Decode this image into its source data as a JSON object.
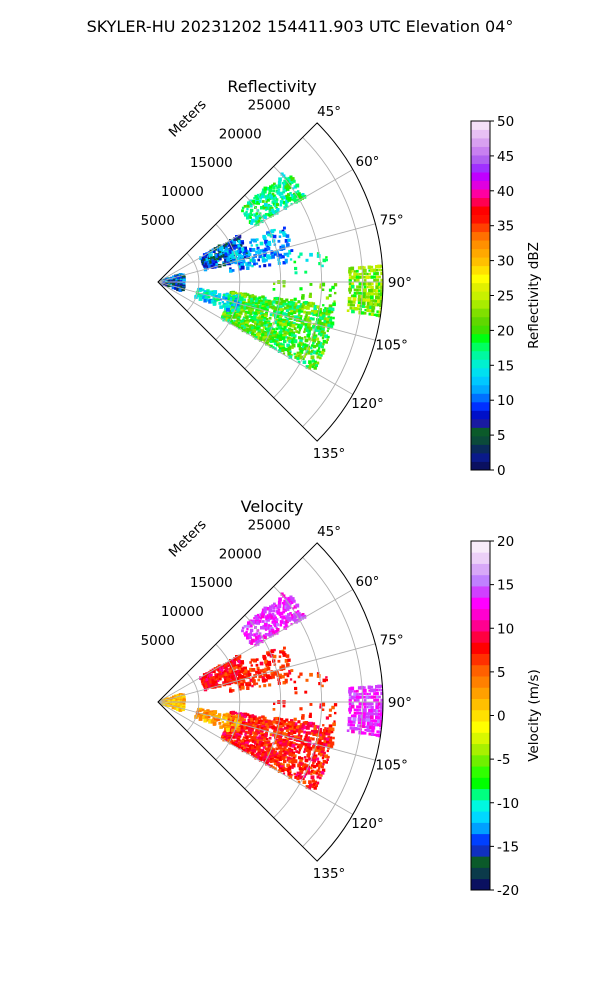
{
  "figure": {
    "suptitle": "SKYLER-HU  20231202  154411.903 UTC Elevation 04°"
  },
  "chart_data": [
    {
      "type": "heatmap",
      "title": "Reflectivity",
      "range_label": "Meters",
      "range_ticks": [
        5000,
        10000,
        15000,
        20000,
        25000
      ],
      "rmax": 27500,
      "azimuth_ticks": [
        "45°",
        "60°",
        "75°",
        "90°",
        "105°",
        "120°",
        "135°"
      ],
      "azimuth_range": [
        45,
        135
      ],
      "colorbar": {
        "label": "Reflectivity dBZ",
        "range": [
          0,
          50
        ],
        "ticks": [
          0,
          5,
          10,
          15,
          20,
          25,
          30,
          35,
          40,
          45,
          50
        ],
        "colors": [
          "#0a1060",
          "#0a1a8a",
          "#0a2a5a",
          "#0b4a3a",
          "#0b5a2a",
          "#1a1aa0",
          "#0010c8",
          "#0030ff",
          "#0070ff",
          "#00a8ff",
          "#00c8ff",
          "#00e0f0",
          "#00f0d0",
          "#00f8a0",
          "#00ff60",
          "#00ff10",
          "#40e000",
          "#60d800",
          "#80e000",
          "#a8ec00",
          "#c8f000",
          "#e0f000",
          "#ffff00",
          "#ffe000",
          "#ffc000",
          "#ffa800",
          "#ff9000",
          "#ff7000",
          "#ff4000",
          "#ff1000",
          "#ff0000",
          "#ff0050",
          "#ff00a0",
          "#e000e0",
          "#c000ff",
          "#a030ff",
          "#b060f0",
          "#c880f0",
          "#d8a0f0",
          "#e8c0f4",
          "#f4e0f8"
        ]
      },
      "echo_regions": [
        {
          "az": [
            49,
            60
          ],
          "r": [
            13500,
            21000
          ],
          "values": [
            14,
            20
          ],
          "density": 0.55
        },
        {
          "az": [
            60,
            76
          ],
          "r": [
            6000,
            11500
          ],
          "values": [
            4,
            14
          ],
          "density": 0.45
        },
        {
          "az": [
            66,
            82
          ],
          "r": [
            9000,
            17000
          ],
          "values": [
            8,
            16
          ],
          "density": 0.3
        },
        {
          "az": [
            72,
            110
          ],
          "r": [
            200,
            3500
          ],
          "values": [
            3,
            14
          ],
          "density": 0.45
        },
        {
          "az": [
            86,
            99
          ],
          "r": [
            23500,
            27500
          ],
          "values": [
            18,
            26
          ],
          "density": 0.8
        },
        {
          "az": [
            98,
            120
          ],
          "r": [
            9000,
            22000
          ],
          "values": [
            16,
            24
          ],
          "density": 0.6
        },
        {
          "az": [
            100,
            112
          ],
          "r": [
            5000,
            10500
          ],
          "values": [
            10,
            18
          ],
          "density": 0.4
        },
        {
          "az": [
            79,
            87
          ],
          "r": [
            16000,
            21000
          ],
          "values": [
            14,
            20
          ],
          "density": 0.12
        },
        {
          "az": [
            90,
            103
          ],
          "r": [
            13000,
            22000
          ],
          "values": [
            18,
            24
          ],
          "density": 0.08
        }
      ]
    },
    {
      "type": "heatmap",
      "title": "Velocity",
      "range_label": "Meters",
      "range_ticks": [
        5000,
        10000,
        15000,
        20000,
        25000
      ],
      "rmax": 27500,
      "azimuth_ticks": [
        "45°",
        "60°",
        "75°",
        "90°",
        "105°",
        "120°",
        "135°"
      ],
      "azimuth_range": [
        45,
        135
      ],
      "colorbar": {
        "label": "Velocity (m/s)",
        "range": [
          -20,
          20
        ],
        "ticks": [
          -20,
          -15,
          -10,
          -5,
          0,
          5,
          10,
          15,
          20
        ],
        "colors": [
          "#0a1060",
          "#0b3a4a",
          "#0b5a2a",
          "#1030c0",
          "#0040ff",
          "#00a0ff",
          "#00d8ff",
          "#00f8e0",
          "#00ff80",
          "#00ff00",
          "#30ff00",
          "#70f000",
          "#a8f000",
          "#d8f800",
          "#ffff00",
          "#ffe000",
          "#ffc000",
          "#ffa000",
          "#ff8000",
          "#ff6000",
          "#ff3000",
          "#ff0000",
          "#ff0040",
          "#ff0090",
          "#ff00d0",
          "#ff00ff",
          "#d040ff",
          "#c080ff",
          "#d8a8f8",
          "#ecd0f8",
          "#f8ecfa"
        ]
      },
      "echo_regions": [
        {
          "az": [
            49,
            60
          ],
          "r": [
            13500,
            21000
          ],
          "values": [
            12,
            15
          ],
          "density": 0.55
        },
        {
          "az": [
            60,
            76
          ],
          "r": [
            6000,
            11500
          ],
          "values": [
            6,
            10
          ],
          "density": 0.45
        },
        {
          "az": [
            66,
            82
          ],
          "r": [
            9000,
            17000
          ],
          "values": [
            5,
            9
          ],
          "density": 0.3
        },
        {
          "az": [
            72,
            110
          ],
          "r": [
            200,
            3500
          ],
          "values": [
            -1,
            4
          ],
          "density": 0.45
        },
        {
          "az": [
            86,
            99
          ],
          "r": [
            23500,
            27500
          ],
          "values": [
            12,
            15
          ],
          "density": 0.8
        },
        {
          "az": [
            98,
            120
          ],
          "r": [
            9000,
            22000
          ],
          "values": [
            5,
            10
          ],
          "density": 0.6
        },
        {
          "az": [
            100,
            112
          ],
          "r": [
            5000,
            10500
          ],
          "values": [
            0,
            5
          ],
          "density": 0.4
        },
        {
          "az": [
            79,
            87
          ],
          "r": [
            16000,
            21000
          ],
          "values": [
            5,
            9
          ],
          "density": 0.12
        },
        {
          "az": [
            90,
            103
          ],
          "r": [
            13000,
            22000
          ],
          "values": [
            5,
            9
          ],
          "density": 0.08
        }
      ]
    }
  ]
}
